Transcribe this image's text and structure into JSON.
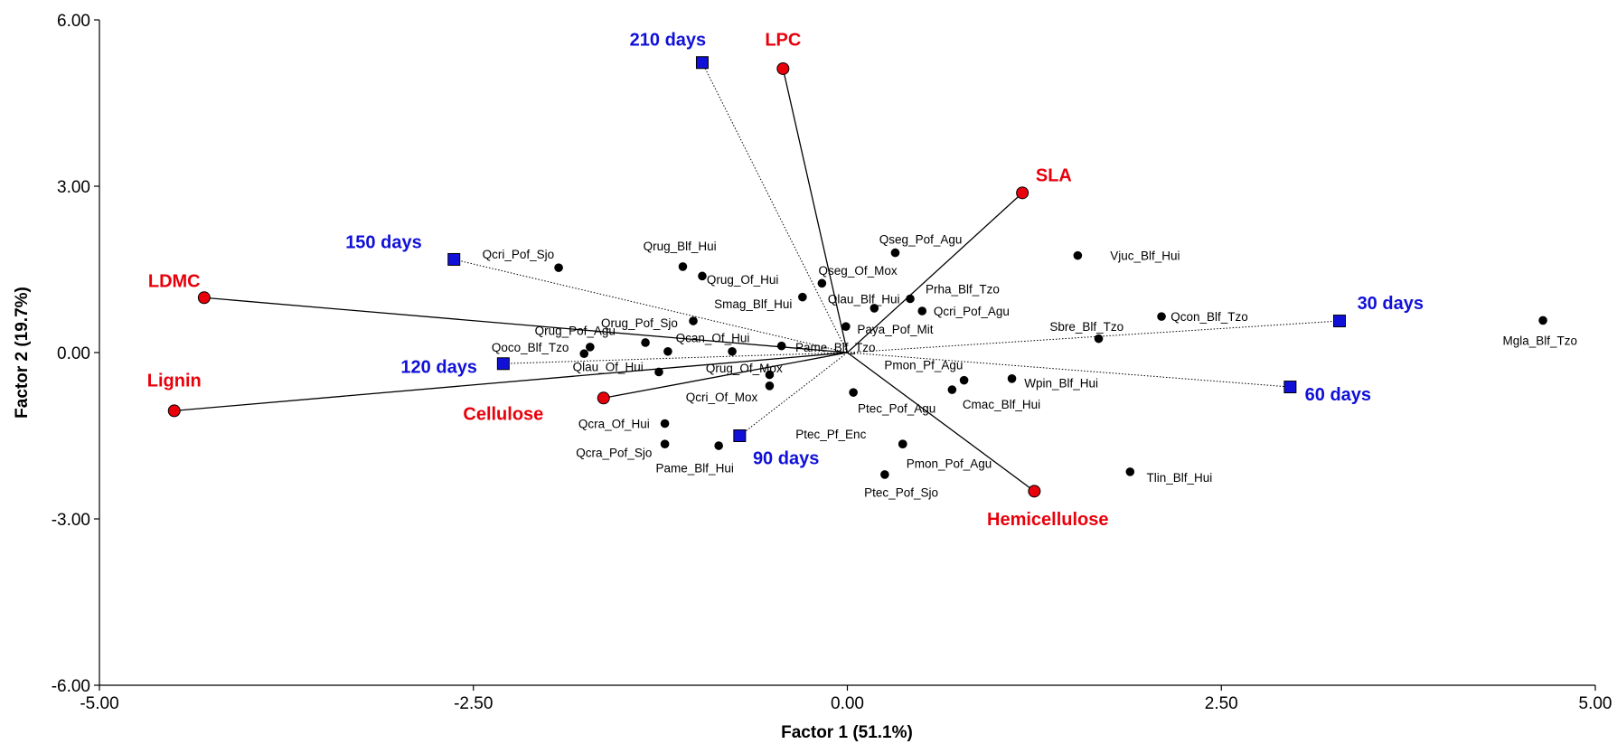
{
  "chart_data": {
    "type": "scatter",
    "title": "",
    "xlabel": "Factor 1 (51.1%)",
    "ylabel": "Factor 2 (19.7%)",
    "xlim": [
      -5,
      5
    ],
    "ylim": [
      -6,
      6
    ],
    "x_ticks": [
      -5,
      -2.5,
      0,
      2.5,
      5
    ],
    "x_tick_labels": [
      "-5.00",
      "-2.50",
      "0.00",
      "2.50",
      "5.00"
    ],
    "y_ticks": [
      -6,
      -3,
      0,
      3,
      6
    ],
    "y_tick_labels": [
      "-6.00",
      "-3.00",
      "0.00",
      "3.00",
      "6.00"
    ],
    "grid": false,
    "colors": {
      "traits": "#e8000b",
      "times": "#1010d8",
      "sites": "#000000"
    },
    "sites": [
      {
        "name": "Qcri_Pof_Sjo",
        "x": -1.93,
        "y": 1.53,
        "lx": -2.2,
        "ly": 1.78
      },
      {
        "name": "Qrug_Blf_Hui",
        "x": -1.1,
        "y": 1.55,
        "lx": -1.12,
        "ly": 1.92
      },
      {
        "name": "Qrug_Of_Hui",
        "x": -0.97,
        "y": 1.38,
        "lx": -0.7,
        "ly": 1.32
      },
      {
        "name": "Qseg_Of_Mox",
        "x": -0.17,
        "y": 1.25,
        "lx": 0.07,
        "ly": 1.48
      },
      {
        "name": "Qseg_Pof_Agu",
        "x": 0.32,
        "y": 1.8,
        "lx": 0.49,
        "ly": 2.05
      },
      {
        "name": "Vjuc_Blf_Hui",
        "x": 1.54,
        "y": 1.75,
        "lx": 1.99,
        "ly": 1.75
      },
      {
        "name": "Smag_Blf_Hui",
        "x": -0.3,
        "y": 1.0,
        "lx": -0.63,
        "ly": 0.88
      },
      {
        "name": "Prha_Blf_Tzo",
        "x": 0.42,
        "y": 0.97,
        "lx": 0.77,
        "ly": 1.15
      },
      {
        "name": "Qlau_Blf_Hui",
        "x": 0.18,
        "y": 0.8,
        "lx": 0.11,
        "ly": 0.97
      },
      {
        "name": "Qcri_Pof_Agu",
        "x": 0.5,
        "y": 0.75,
        "lx": 0.83,
        "ly": 0.75
      },
      {
        "name": "Paya_Pof_Mit",
        "x": -0.01,
        "y": 0.47,
        "lx": 0.32,
        "ly": 0.42
      },
      {
        "name": "Qcon_Blf_Tzo",
        "x": 2.1,
        "y": 0.65,
        "lx": 2.42,
        "ly": 0.65
      },
      {
        "name": "Sbre_Blf_Tzo",
        "x": 1.68,
        "y": 0.25,
        "lx": 1.6,
        "ly": 0.47
      },
      {
        "name": "Mgla_Blf_Tzo",
        "x": 4.65,
        "y": 0.58,
        "lx": 4.63,
        "ly": 0.22
      },
      {
        "name": "Qrug_Pof_Sjo",
        "x": -1.03,
        "y": 0.57,
        "lx": -1.39,
        "ly": 0.54
      },
      {
        "name": "Qrug_Pof_Agu",
        "x": -1.72,
        "y": 0.1,
        "lx": -1.82,
        "ly": 0.4
      },
      {
        "name": "Qcan_Of_Hui",
        "x": -0.77,
        "y": 0.02,
        "lx": -0.9,
        "ly": 0.27
      },
      {
        "name": "Pame_Blf_Tzo",
        "x": -0.44,
        "y": 0.12,
        "lx": -0.08,
        "ly": 0.1
      },
      {
        "name": "Qoco_Blf_Tzo",
        "x": -1.76,
        "y": -0.02,
        "lx": -2.12,
        "ly": 0.1
      },
      {
        "name": "Qrug_Pof_Agu_2",
        "x": -1.35,
        "y": 0.18,
        "lx": null,
        "ly": null
      },
      {
        "name": "Qlau_Of_Hui_pt",
        "x": -1.2,
        "y": 0.02,
        "lx": null,
        "ly": null
      },
      {
        "name": "Qlau_Of_Hui",
        "x": -1.26,
        "y": -0.35,
        "lx": -1.6,
        "ly": -0.25
      },
      {
        "name": "Qrug_Of_Mox",
        "x": -0.52,
        "y": -0.4,
        "lx": -0.69,
        "ly": -0.28
      },
      {
        "name": "Qcri_Of_Mox",
        "x": -0.52,
        "y": -0.6,
        "lx": -0.84,
        "ly": -0.8
      },
      {
        "name": "Pmon_Pf_Agu",
        "x": 0.78,
        "y": -0.5,
        "lx": 0.51,
        "ly": -0.22
      },
      {
        "name": "Wpin_Blf_Hui",
        "x": 1.1,
        "y": -0.47,
        "lx": 1.43,
        "ly": -0.55
      },
      {
        "name": "Cmac_Blf_Hui",
        "x": 0.7,
        "y": -0.67,
        "lx": 1.03,
        "ly": -0.93
      },
      {
        "name": "Ptec_Pof_Agu",
        "x": 0.04,
        "y": -0.72,
        "lx": 0.33,
        "ly": -1.0
      },
      {
        "name": "Qcra_Of_Hui",
        "x": -1.22,
        "y": -1.28,
        "lx": -1.56,
        "ly": -1.28
      },
      {
        "name": "Qcra_Pof_Sjo",
        "x": -1.22,
        "y": -1.65,
        "lx": -1.56,
        "ly": -1.8
      },
      {
        "name": "Pame_Blf_Hui",
        "x": -0.86,
        "y": -1.68,
        "lx": -1.02,
        "ly": -2.08
      },
      {
        "name": "Ptec_Pf_Enc",
        "x": 0.37,
        "y": -1.65,
        "lx": -0.11,
        "ly": -1.47
      },
      {
        "name": "Pmon_Pof_Agu",
        "x": 0.37,
        "y": -1.65,
        "lx": 0.68,
        "ly": -2.0
      },
      {
        "name": "Ptec_Pof_Sjo",
        "x": 0.25,
        "y": -2.2,
        "lx": 0.36,
        "ly": -2.52
      },
      {
        "name": "Tlin_Blf_Hui",
        "x": 1.89,
        "y": -2.15,
        "lx": 2.22,
        "ly": -2.25
      }
    ],
    "traits": [
      {
        "name": "LPC",
        "x": -0.43,
        "y": 5.12,
        "lx": -0.43,
        "ly": 5.65
      },
      {
        "name": "SLA",
        "x": 1.17,
        "y": 2.88,
        "lx": 1.38,
        "ly": 3.2
      },
      {
        "name": "LDMC",
        "x": -4.3,
        "y": 0.99,
        "lx": -4.5,
        "ly": 1.3
      },
      {
        "name": "Lignin",
        "x": -4.5,
        "y": -1.05,
        "lx": -4.5,
        "ly": -0.5
      },
      {
        "name": "Cellulose",
        "x": -1.63,
        "y": -0.82,
        "lx": -2.3,
        "ly": -1.1
      },
      {
        "name": "Hemicellulose",
        "x": 1.25,
        "y": -2.5,
        "lx": 1.34,
        "ly": -3.0
      }
    ],
    "times": [
      {
        "name": "30 days",
        "x": 3.29,
        "y": 0.57,
        "lx": 3.63,
        "ly": 0.9
      },
      {
        "name": "60 days",
        "x": 2.96,
        "y": -0.62,
        "lx": 3.28,
        "ly": -0.75
      },
      {
        "name": "90 days",
        "x": -0.72,
        "y": -1.5,
        "lx": -0.41,
        "ly": -1.9
      },
      {
        "name": "120 days",
        "x": -2.3,
        "y": -0.2,
        "lx": -2.73,
        "ly": -0.25
      },
      {
        "name": "150 days",
        "x": -2.63,
        "y": 1.68,
        "lx": -3.1,
        "ly": 2.0
      },
      {
        "name": "210 days",
        "x": -0.97,
        "y": 5.23,
        "lx": -1.2,
        "ly": 5.65
      }
    ]
  }
}
